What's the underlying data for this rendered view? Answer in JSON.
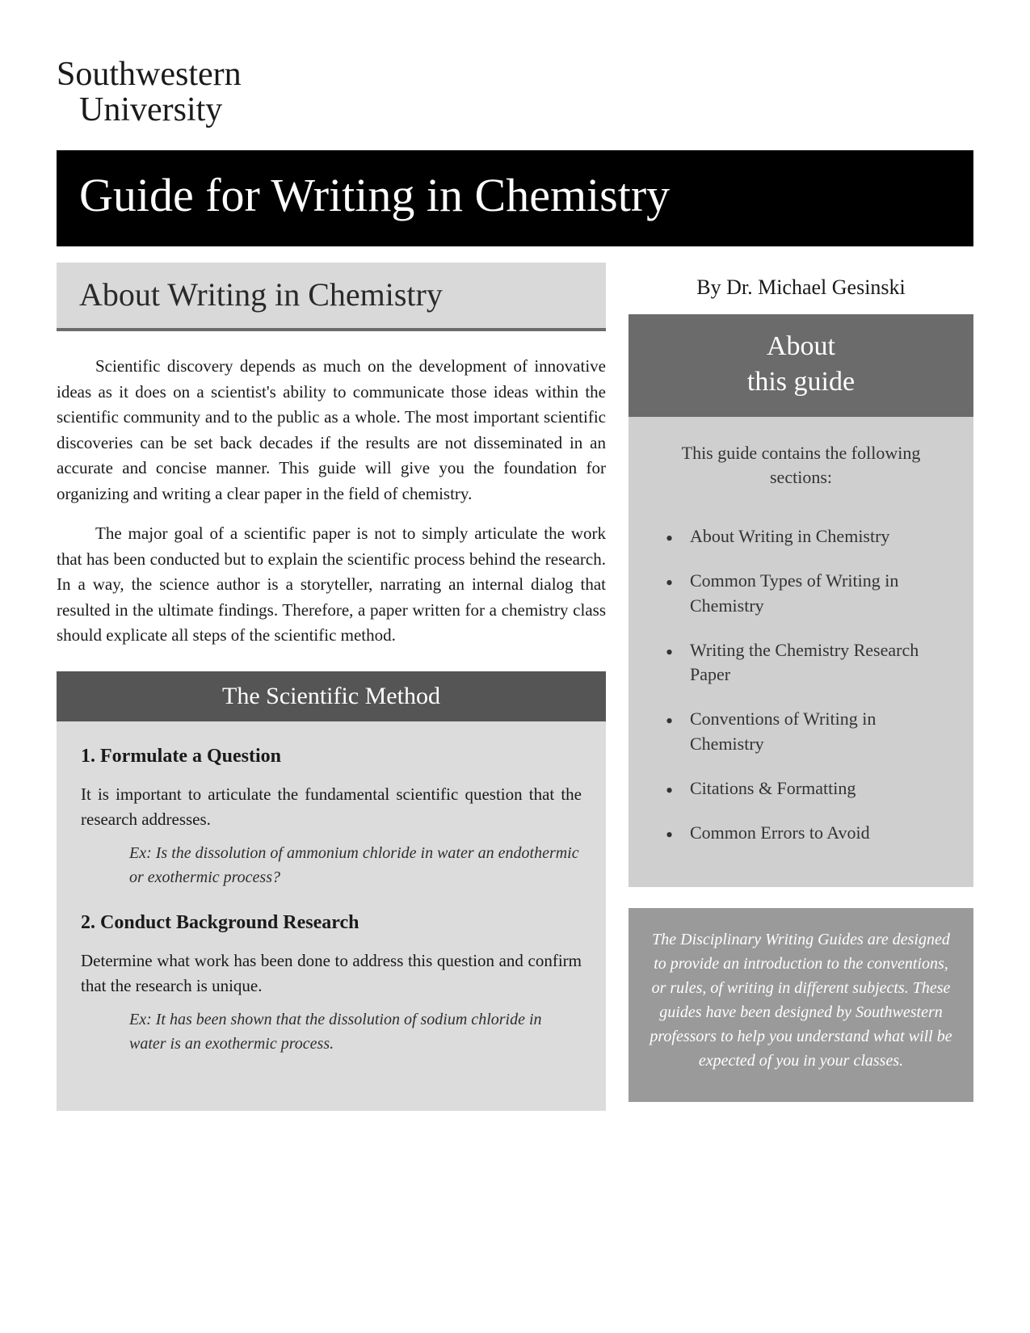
{
  "institution": {
    "line1": "Southwestern",
    "line2": "University"
  },
  "title": "Guide for Writing in Chemistry",
  "byline": "By Dr. Michael Gesinski",
  "left": {
    "section_heading": "About Writing in Chemistry",
    "para1": "Scientific discovery depends as much on the development of innovative ideas as it does on a scientist's ability to communicate those ideas within the scientific community and to the public as a whole. The most important scientific discoveries can be set back decades if the results are not disseminated in an accurate and concise manner. This guide will give you the foundation for organizing and writing a clear paper in the field of chemistry.",
    "para2": "The major goal of a scientific paper is not to simply articulate the work that has been conducted but to explain the scientific process behind the research. In a way, the science author is a storyteller, narrating an internal dialog that resulted in the ultimate findings. Therefore, a paper written for a chemistry class should explicate all steps of the scientific method.",
    "method": {
      "heading": "The Scientific Method",
      "steps": [
        {
          "title": "1. Formulate a Question",
          "desc": "It is important to articulate the fundamental scientific question that the research addresses.",
          "example": "Ex: Is the dissolution of ammonium chloride in water an endothermic or exothermic process?"
        },
        {
          "title": "2. Conduct Background Research",
          "desc": "Determine what work has been done to address this question and confirm that the research is unique.",
          "example": "Ex: It has been shown that the dissolution of sodium chloride in water is an exothermic process."
        }
      ]
    }
  },
  "sidebar": {
    "heading_line1": "About",
    "heading_line2": "this guide",
    "intro": "This guide contains the following sections:",
    "items": [
      "About Writing in Chemistry",
      "Common Types of Writing in Chemistry",
      "Writing the Chemistry Research Paper",
      "Conventions of Writing in Chemistry",
      "Citations & Formatting",
      "Common Errors to Avoid"
    ],
    "footer_note": "The Disciplinary Writing Guides are designed to provide an introduction to the conventions, or rules, of writing in different subjects. These guides have been designed by Southwestern professors to help you understand what will be expected of you in your classes."
  },
  "colors": {
    "page_bg": "#ffffff",
    "title_bg": "#000000",
    "title_fg": "#ffffff",
    "light_header_bg": "#d9d9d9",
    "light_header_border": "#6b6b6b",
    "method_header_bg": "#555555",
    "method_body_bg": "#dcdcdc",
    "sidebar_bg": "#cfcfcf",
    "sidebar_header_bg": "#6b6b6b",
    "footer_note_bg": "#9a9a9a"
  }
}
